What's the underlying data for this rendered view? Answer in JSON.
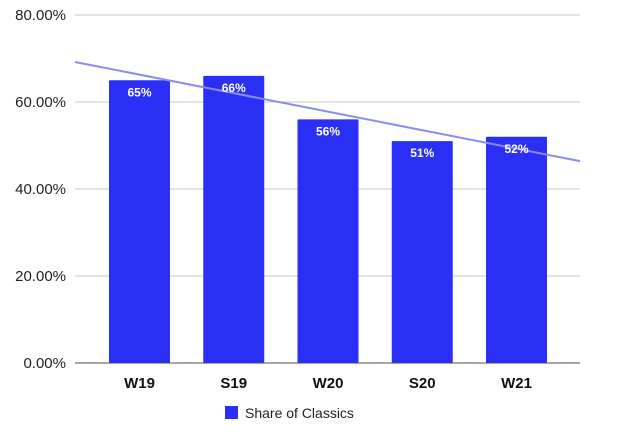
{
  "chart_data": {
    "type": "bar",
    "title": "",
    "xlabel": "",
    "ylabel": "",
    "categories": [
      "W19",
      "S19",
      "W20",
      "S20",
      "W21"
    ],
    "series": [
      {
        "name": "Share of Classics",
        "values": [
          65,
          66,
          56,
          51,
          52
        ],
        "labels": [
          "65%",
          "66%",
          "56%",
          "51%",
          "52%"
        ],
        "color": "#2a2ff5"
      }
    ],
    "trendline": {
      "start": 69.2,
      "end": 46.4,
      "color": "#8a8cf0"
    },
    "ylim": [
      0,
      80
    ],
    "yticks": [
      0,
      20,
      40,
      60,
      80
    ],
    "ytick_labels": [
      "0.00%",
      "20.00%",
      "40.00%",
      "60.00%",
      "80.00%"
    ],
    "grid": true,
    "legend": {
      "position": "bottom",
      "entries": [
        "Share of Classics"
      ]
    }
  }
}
